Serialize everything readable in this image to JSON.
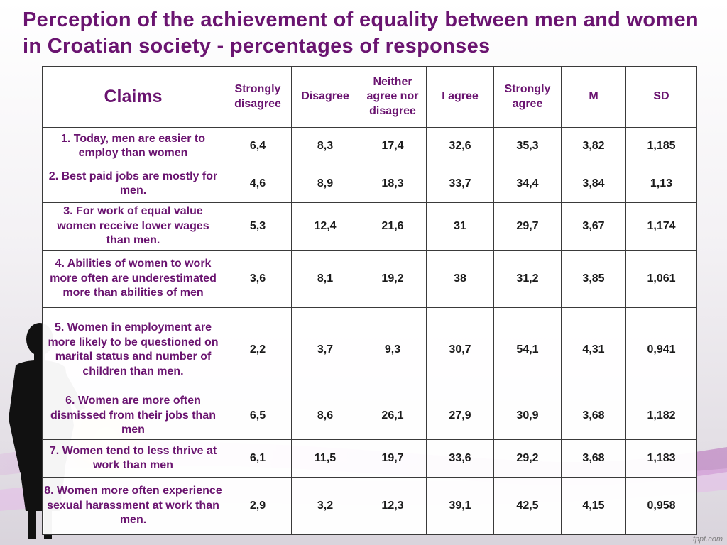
{
  "title": "Perception of the achievement of equality between men and women in Croatian society - percentages of responses",
  "table": {
    "headers": [
      "Claims",
      "Strongly disagree",
      "Disagree",
      "Neither agree nor disagree",
      "I agree",
      "Strongly agree",
      "M",
      "SD"
    ],
    "rows": [
      {
        "claim": "1. Today, men are easier to employ than women",
        "values": [
          "6,4",
          "8,3",
          "17,4",
          "32,6",
          "35,3",
          "3,82",
          "1,185"
        ]
      },
      {
        "claim": "2. Best paid jobs are mostly for men.",
        "values": [
          "4,6",
          "8,9",
          "18,3",
          "33,7",
          "34,4",
          "3,84",
          "1,13"
        ]
      },
      {
        "claim": "3. For work of equal value women receive lower wages than men.",
        "values": [
          "5,3",
          "12,4",
          "21,6",
          "31",
          "29,7",
          "3,67",
          "1,174"
        ]
      },
      {
        "claim": "4. Abilities of women to work more often are underestimated more than abilities of men",
        "values": [
          "3,6",
          "8,1",
          "19,2",
          "38",
          "31,2",
          "3,85",
          "1,061"
        ]
      },
      {
        "claim": "5. Women in employment are more likely to be questioned on marital status and number of children than men.",
        "values": [
          "2,2",
          "3,7",
          "9,3",
          "30,7",
          "54,1",
          "4,31",
          "0,941"
        ]
      },
      {
        "claim": "6. Women are more often dismissed from their jobs than men",
        "values": [
          "6,5",
          "8,6",
          "26,1",
          "27,9",
          "30,9",
          "3,68",
          "1,182"
        ]
      },
      {
        "claim": "7. Women tend to less thrive at work than men",
        "values": [
          "6,1",
          "11,5",
          "19,7",
          "33,6",
          "29,2",
          "3,68",
          "1,183"
        ]
      },
      {
        "claim": "8. Women more often experience sexual harassment at work than men.",
        "values": [
          "2,9",
          "3,2",
          "12,3",
          "39,1",
          "42,5",
          "4,15",
          "0,958"
        ]
      }
    ]
  },
  "watermark": "fppt.com",
  "colors": {
    "title": "#6a1470",
    "swoosh": "#c24fc6",
    "silhouette": "#111111"
  }
}
